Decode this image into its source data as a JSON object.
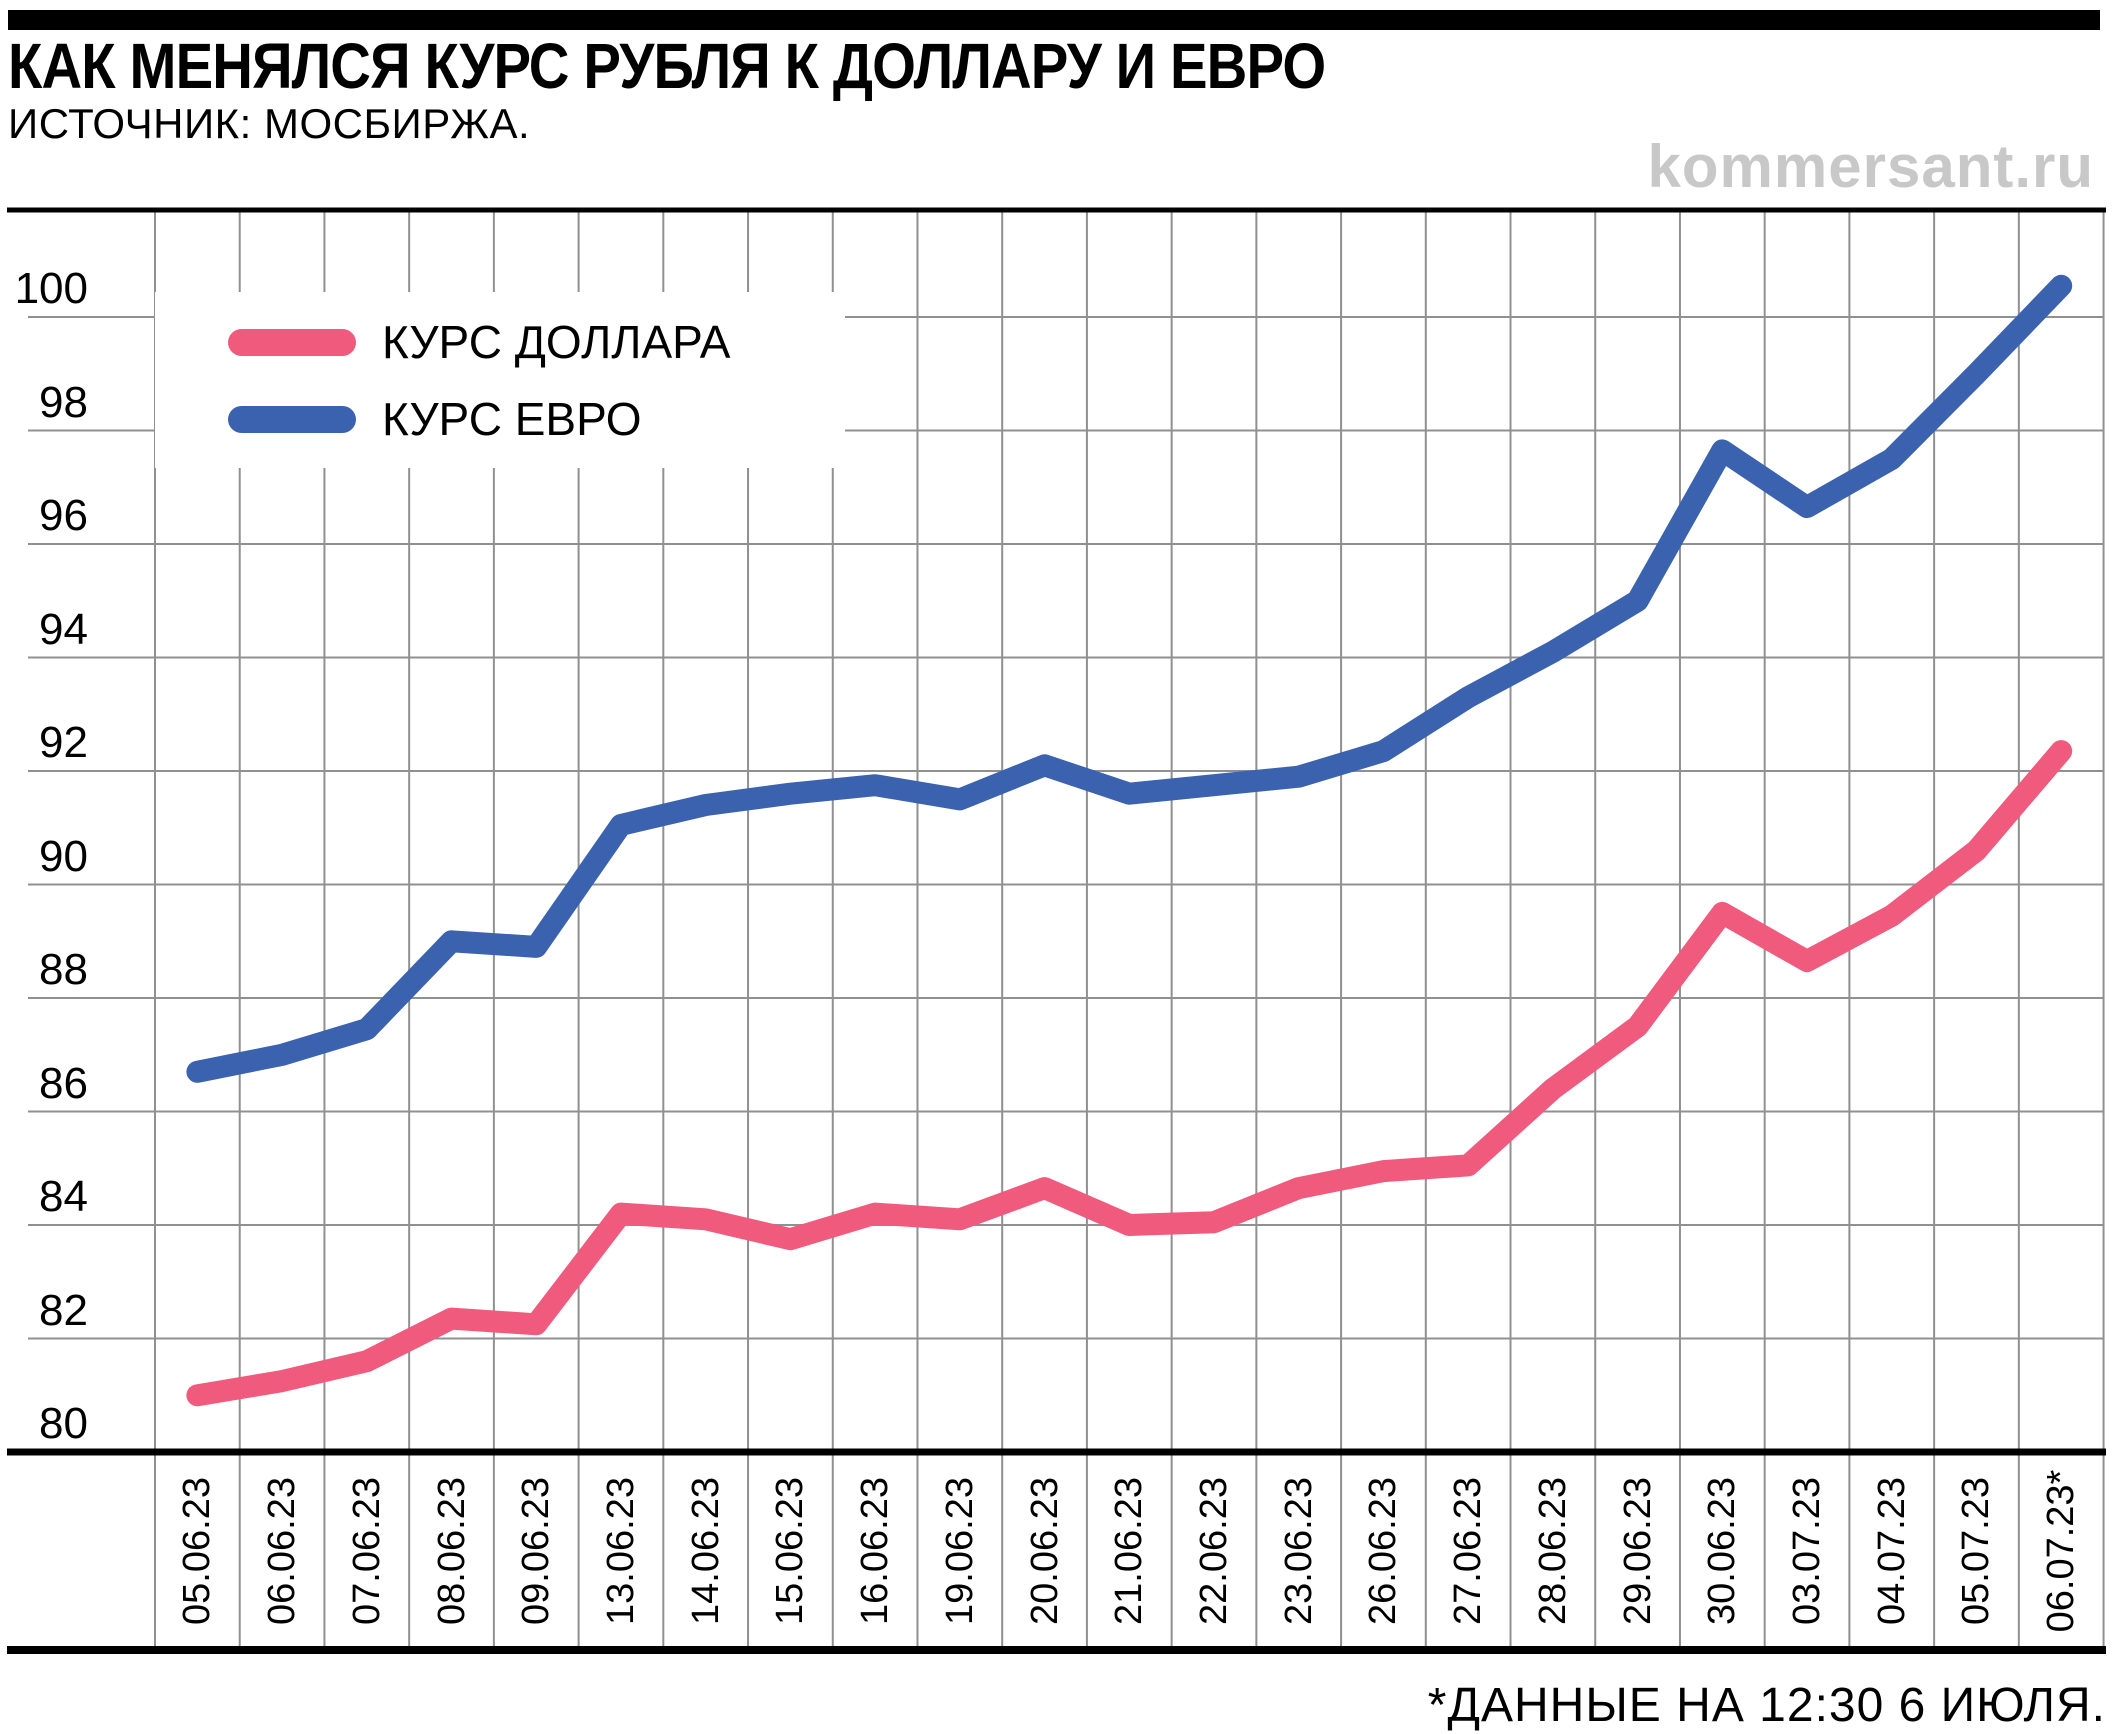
{
  "header": {
    "title": "КАК МЕНЯЛСЯ КУРС РУБЛЯ К ДОЛЛАРУ И ЕВРО",
    "source": "ИСТОЧНИК: МОСБИРЖА.",
    "watermark": "kommersant.ru"
  },
  "footer": {
    "note": "*ДАННЫЕ НА 12:30 6 ИЮЛЯ."
  },
  "colors": {
    "usd_line": "#ef5a7d",
    "eur_line": "#3a62ae",
    "grid": "#909090",
    "axis": "#000000",
    "watermark_gray": "#c8c8c8"
  },
  "chart_data": {
    "type": "line",
    "categories": [
      "05.06.23",
      "06.06.23",
      "07.06.23",
      "08.06.23",
      "09.06.23",
      "13.06.23",
      "14.06.23",
      "15.06.23",
      "16.06.23",
      "19.06.23",
      "20.06.23",
      "21.06.23",
      "22.06.23",
      "23.06.23",
      "26.06.23",
      "27.06.23",
      "28.06.23",
      "29.06.23",
      "30.06.23",
      "03.07.23",
      "04.07.23",
      "05.07.23",
      "06.07.23*"
    ],
    "series": [
      {
        "name": "КУРС ДОЛЛАРА",
        "color": "#ef5a7d",
        "values": [
          81.0,
          81.25,
          81.6,
          82.35,
          82.25,
          84.2,
          84.1,
          83.75,
          84.2,
          84.1,
          84.65,
          84.0,
          84.05,
          84.65,
          84.95,
          85.05,
          86.4,
          87.5,
          89.5,
          88.65,
          89.45,
          90.6,
          92.35
        ]
      },
      {
        "name": "КУРС ЕВРО",
        "color": "#3a62ae",
        "values": [
          86.7,
          87.0,
          87.45,
          89.0,
          88.9,
          91.05,
          91.4,
          91.6,
          91.75,
          91.5,
          92.1,
          91.6,
          91.75,
          91.9,
          92.35,
          93.3,
          94.1,
          95.0,
          97.65,
          96.65,
          97.5,
          99.0,
          100.55
        ]
      }
    ],
    "yticks": [
      100,
      98,
      96,
      94,
      92,
      90,
      88,
      86,
      84,
      82,
      80
    ],
    "ylim": [
      79.9,
      101.85
    ],
    "xlabel": "",
    "ylabel": "",
    "grid": true,
    "legend_position": "top-left",
    "line_width": 22
  }
}
